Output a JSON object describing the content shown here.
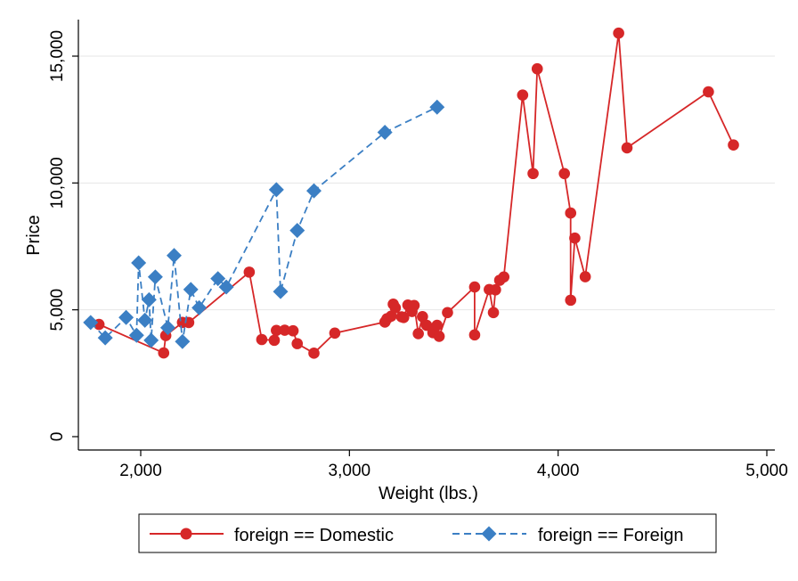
{
  "chart_data": {
    "type": "line",
    "title": "",
    "xlabel": "Weight (lbs.)",
    "ylabel": "Price",
    "xlim": [
      1760,
      5000
    ],
    "ylim": [
      0,
      15906
    ],
    "xticks": [
      2000,
      3000,
      4000,
      5000
    ],
    "xtick_labels": [
      "2,000",
      "3,000",
      "4,000",
      "5,000"
    ],
    "yticks": [
      0,
      5000,
      10000,
      15000
    ],
    "ytick_labels": [
      "0",
      "5,000",
      "10,000",
      "15,000"
    ],
    "grid": "horizontal",
    "legend_position": "bottom",
    "series": [
      {
        "name": "foreign == Domestic",
        "color": "#d62728",
        "marker": "circle",
        "line": "solid",
        "points": [
          [
            1800,
            4425
          ],
          [
            2110,
            3299
          ],
          [
            2120,
            3984
          ],
          [
            2200,
            4504
          ],
          [
            2230,
            4499
          ],
          [
            2520,
            6486
          ],
          [
            2580,
            3829
          ],
          [
            2640,
            3798
          ],
          [
            2650,
            4187
          ],
          [
            2690,
            4195
          ],
          [
            2730,
            4172
          ],
          [
            2750,
            3667
          ],
          [
            2830,
            3291
          ],
          [
            2930,
            4082
          ],
          [
            3170,
            4516
          ],
          [
            3180,
            4647
          ],
          [
            3200,
            4749
          ],
          [
            3210,
            5222
          ],
          [
            3220,
            5079
          ],
          [
            3250,
            4723
          ],
          [
            3260,
            4697
          ],
          [
            3280,
            5189
          ],
          [
            3300,
            4934
          ],
          [
            3310,
            5172
          ],
          [
            3330,
            4060
          ],
          [
            3350,
            4733
          ],
          [
            3370,
            4389
          ],
          [
            3400,
            4099
          ],
          [
            3420,
            4389
          ],
          [
            3430,
            3955
          ],
          [
            3470,
            4890
          ],
          [
            3600,
            5899
          ],
          [
            3600,
            4010
          ],
          [
            3670,
            5799
          ],
          [
            3690,
            4890
          ],
          [
            3700,
            5788
          ],
          [
            3720,
            6165
          ],
          [
            3740,
            6295
          ],
          [
            3830,
            13466
          ],
          [
            3880,
            10372
          ],
          [
            3900,
            14500
          ],
          [
            4030,
            10371
          ],
          [
            4060,
            8814
          ],
          [
            4060,
            5379
          ],
          [
            4080,
            7827
          ],
          [
            4130,
            6303
          ],
          [
            4290,
            15906
          ],
          [
            4330,
            11385
          ],
          [
            4720,
            13594
          ],
          [
            4840,
            11497
          ]
        ]
      },
      {
        "name": "foreign == Foreign",
        "color": "#3b7fc4",
        "marker": "diamond",
        "line": "dashed",
        "points": [
          [
            1760,
            4499
          ],
          [
            1830,
            3895
          ],
          [
            1930,
            4697
          ],
          [
            1980,
            3995
          ],
          [
            1990,
            6850
          ],
          [
            2020,
            4589
          ],
          [
            2040,
            5397
          ],
          [
            2050,
            3798
          ],
          [
            2070,
            6295
          ],
          [
            2130,
            4296
          ],
          [
            2160,
            7140
          ],
          [
            2200,
            3748
          ],
          [
            2240,
            5799
          ],
          [
            2280,
            5079
          ],
          [
            2370,
            6229
          ],
          [
            2410,
            5899
          ],
          [
            2650,
            9735
          ],
          [
            2670,
            5719
          ],
          [
            2750,
            8129
          ],
          [
            2830,
            9690
          ],
          [
            3170,
            11995
          ],
          [
            3420,
            12990
          ]
        ]
      }
    ]
  }
}
